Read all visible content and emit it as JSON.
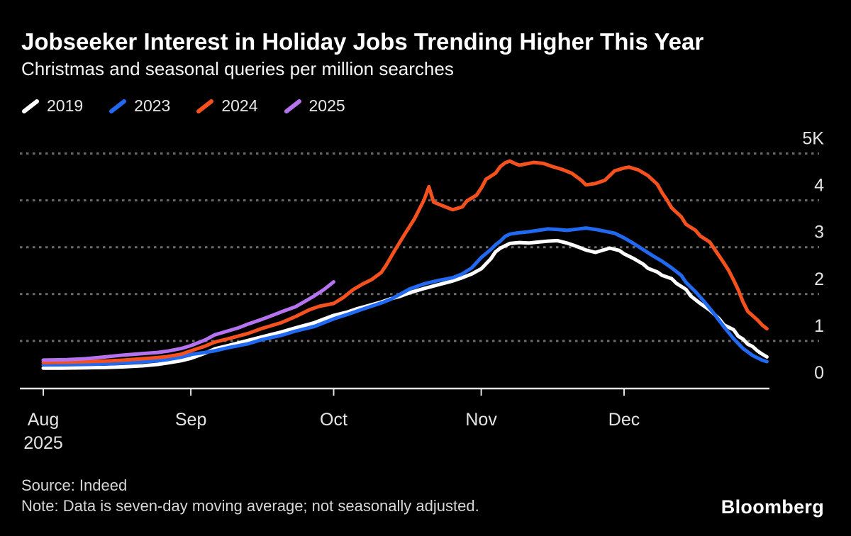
{
  "header": {
    "title": "Jobseeker Interest in Holiday Jobs Trending Higher This Year",
    "subtitle": "Christmas and seasonal queries per million searches"
  },
  "legend": {
    "position": "top-left",
    "items": [
      {
        "label": "2019",
        "color": "#ffffff"
      },
      {
        "label": "2023",
        "color": "#2269f2"
      },
      {
        "label": "2024",
        "color": "#f4511e"
      },
      {
        "label": "2025",
        "color": "#b673f0"
      }
    ]
  },
  "chart_data": {
    "type": "line",
    "title": "Jobseeker Interest in Holiday Jobs Trending Higher This Year",
    "subtitle": "Christmas and seasonal queries per million searches",
    "background": "#000000",
    "grid": "horizontal-dashed",
    "x_axis": {
      "unit": "days since Aug 1",
      "domain_days": [
        0,
        152
      ],
      "tick_labels": [
        "Aug",
        "Sep",
        "Oct",
        "Nov",
        "Dec"
      ],
      "tick_days": [
        0,
        31,
        61,
        92,
        122
      ],
      "start_year_label": "2025"
    },
    "y_axis": {
      "ylim": [
        0,
        5000
      ],
      "tick_values": [
        0,
        1000,
        2000,
        3000,
        4000,
        5000
      ],
      "tick_labels": [
        "0",
        "1",
        "2",
        "3",
        "4",
        "5K"
      ],
      "side": "right"
    },
    "series": [
      {
        "name": "2019",
        "color": "#ffffff",
        "points": [
          [
            0,
            420
          ],
          [
            4,
            420
          ],
          [
            9,
            428
          ],
          [
            13,
            432
          ],
          [
            17,
            448
          ],
          [
            21,
            470
          ],
          [
            24,
            500
          ],
          [
            26,
            530
          ],
          [
            29,
            580
          ],
          [
            31,
            630
          ],
          [
            34,
            740
          ],
          [
            36,
            830
          ],
          [
            39,
            905
          ],
          [
            43,
            1010
          ],
          [
            46,
            1090
          ],
          [
            50,
            1190
          ],
          [
            53,
            1280
          ],
          [
            57,
            1390
          ],
          [
            59,
            1470
          ],
          [
            61,
            1545
          ],
          [
            64,
            1620
          ],
          [
            66,
            1690
          ],
          [
            68,
            1745
          ],
          [
            71,
            1830
          ],
          [
            73,
            1900
          ],
          [
            75,
            1955
          ],
          [
            77,
            2030
          ],
          [
            80,
            2120
          ],
          [
            83,
            2200
          ],
          [
            86,
            2280
          ],
          [
            88,
            2350
          ],
          [
            90,
            2430
          ],
          [
            92,
            2540
          ],
          [
            94,
            2750
          ],
          [
            95,
            2900
          ],
          [
            96,
            2980
          ],
          [
            98,
            3080
          ],
          [
            100,
            3100
          ],
          [
            102,
            3090
          ],
          [
            104,
            3110
          ],
          [
            106,
            3130
          ],
          [
            108,
            3140
          ],
          [
            110,
            3090
          ],
          [
            112,
            3020
          ],
          [
            114,
            2940
          ],
          [
            116,
            2890
          ],
          [
            118,
            2950
          ],
          [
            119,
            2980
          ],
          [
            121,
            2930
          ],
          [
            122,
            2860
          ],
          [
            124,
            2760
          ],
          [
            126,
            2640
          ],
          [
            127,
            2550
          ],
          [
            129,
            2470
          ],
          [
            130,
            2400
          ],
          [
            132,
            2330
          ],
          [
            133,
            2230
          ],
          [
            135,
            2100
          ],
          [
            136,
            1960
          ],
          [
            138,
            1800
          ],
          [
            140,
            1660
          ],
          [
            142,
            1470
          ],
          [
            143,
            1340
          ],
          [
            145,
            1240
          ],
          [
            146,
            1100
          ],
          [
            147,
            1040
          ],
          [
            148,
            930
          ],
          [
            149,
            880
          ],
          [
            150,
            790
          ],
          [
            151,
            720
          ],
          [
            152,
            660
          ]
        ]
      },
      {
        "name": "2023",
        "color": "#2269f2",
        "points": [
          [
            0,
            490
          ],
          [
            4,
            492
          ],
          [
            9,
            500
          ],
          [
            13,
            512
          ],
          [
            17,
            528
          ],
          [
            21,
            555
          ],
          [
            24,
            578
          ],
          [
            26,
            600
          ],
          [
            29,
            655
          ],
          [
            31,
            712
          ],
          [
            34,
            755
          ],
          [
            36,
            790
          ],
          [
            39,
            860
          ],
          [
            43,
            940
          ],
          [
            46,
            1030
          ],
          [
            50,
            1120
          ],
          [
            53,
            1210
          ],
          [
            57,
            1310
          ],
          [
            59,
            1390
          ],
          [
            61,
            1470
          ],
          [
            64,
            1570
          ],
          [
            66,
            1640
          ],
          [
            68,
            1710
          ],
          [
            71,
            1810
          ],
          [
            73,
            1890
          ],
          [
            75,
            2000
          ],
          [
            77,
            2110
          ],
          [
            80,
            2220
          ],
          [
            83,
            2290
          ],
          [
            86,
            2350
          ],
          [
            88,
            2430
          ],
          [
            90,
            2560
          ],
          [
            92,
            2780
          ],
          [
            94,
            2950
          ],
          [
            95,
            3050
          ],
          [
            96,
            3130
          ],
          [
            97,
            3230
          ],
          [
            98,
            3280
          ],
          [
            100,
            3310
          ],
          [
            102,
            3330
          ],
          [
            104,
            3360
          ],
          [
            106,
            3390
          ],
          [
            108,
            3380
          ],
          [
            110,
            3360
          ],
          [
            112,
            3385
          ],
          [
            114,
            3410
          ],
          [
            116,
            3380
          ],
          [
            118,
            3340
          ],
          [
            120,
            3300
          ],
          [
            122,
            3200
          ],
          [
            124,
            3080
          ],
          [
            126,
            2950
          ],
          [
            128,
            2820
          ],
          [
            130,
            2700
          ],
          [
            132,
            2560
          ],
          [
            134,
            2400
          ],
          [
            135,
            2250
          ],
          [
            137,
            2050
          ],
          [
            139,
            1820
          ],
          [
            141,
            1570
          ],
          [
            143,
            1300
          ],
          [
            145,
            1050
          ],
          [
            147,
            840
          ],
          [
            149,
            690
          ],
          [
            151,
            590
          ],
          [
            152,
            560
          ]
        ]
      },
      {
        "name": "2024",
        "color": "#f4511e",
        "points": [
          [
            0,
            540
          ],
          [
            5,
            548
          ],
          [
            9,
            558
          ],
          [
            13,
            572
          ],
          [
            17,
            592
          ],
          [
            21,
            622
          ],
          [
            24,
            645
          ],
          [
            26,
            665
          ],
          [
            29,
            718
          ],
          [
            31,
            790
          ],
          [
            34,
            890
          ],
          [
            36,
            975
          ],
          [
            39,
            1050
          ],
          [
            43,
            1160
          ],
          [
            46,
            1270
          ],
          [
            50,
            1390
          ],
          [
            53,
            1520
          ],
          [
            56,
            1670
          ],
          [
            58,
            1740
          ],
          [
            61,
            1800
          ],
          [
            63,
            1925
          ],
          [
            65,
            2090
          ],
          [
            67,
            2210
          ],
          [
            69,
            2310
          ],
          [
            71,
            2460
          ],
          [
            72,
            2610
          ],
          [
            74,
            2960
          ],
          [
            76,
            3290
          ],
          [
            78,
            3610
          ],
          [
            80,
            4010
          ],
          [
            81,
            4290
          ],
          [
            82,
            3960
          ],
          [
            84,
            3880
          ],
          [
            86,
            3800
          ],
          [
            88,
            3860
          ],
          [
            89,
            3990
          ],
          [
            91,
            4110
          ],
          [
            92,
            4260
          ],
          [
            93,
            4450
          ],
          [
            95,
            4580
          ],
          [
            96,
            4720
          ],
          [
            97,
            4800
          ],
          [
            98,
            4840
          ],
          [
            99,
            4790
          ],
          [
            100,
            4750
          ],
          [
            102,
            4790
          ],
          [
            103,
            4810
          ],
          [
            105,
            4790
          ],
          [
            107,
            4720
          ],
          [
            109,
            4660
          ],
          [
            111,
            4580
          ],
          [
            113,
            4430
          ],
          [
            114,
            4330
          ],
          [
            116,
            4360
          ],
          [
            118,
            4430
          ],
          [
            119,
            4530
          ],
          [
            120,
            4630
          ],
          [
            122,
            4690
          ],
          [
            123,
            4710
          ],
          [
            125,
            4650
          ],
          [
            127,
            4530
          ],
          [
            129,
            4340
          ],
          [
            130,
            4160
          ],
          [
            131,
            4010
          ],
          [
            132,
            3840
          ],
          [
            134,
            3650
          ],
          [
            135,
            3490
          ],
          [
            137,
            3360
          ],
          [
            138,
            3240
          ],
          [
            140,
            3110
          ],
          [
            141,
            2960
          ],
          [
            143,
            2660
          ],
          [
            144,
            2500
          ],
          [
            145,
            2300
          ],
          [
            146,
            2090
          ],
          [
            147,
            1830
          ],
          [
            148,
            1630
          ],
          [
            150,
            1450
          ],
          [
            151,
            1340
          ],
          [
            152,
            1260
          ]
        ]
      },
      {
        "name": "2025",
        "color": "#b673f0",
        "points": [
          [
            0,
            592
          ],
          [
            5,
            602
          ],
          [
            9,
            622
          ],
          [
            13,
            660
          ],
          [
            17,
            700
          ],
          [
            21,
            732
          ],
          [
            24,
            755
          ],
          [
            26,
            780
          ],
          [
            29,
            840
          ],
          [
            31,
            900
          ],
          [
            34,
            1020
          ],
          [
            36,
            1130
          ],
          [
            39,
            1220
          ],
          [
            41,
            1280
          ],
          [
            43,
            1360
          ],
          [
            46,
            1465
          ],
          [
            48,
            1540
          ],
          [
            50,
            1620
          ],
          [
            53,
            1730
          ],
          [
            55,
            1845
          ],
          [
            57,
            1965
          ],
          [
            59,
            2100
          ],
          [
            61,
            2260
          ]
        ]
      }
    ]
  },
  "footer": {
    "source": "Source: Indeed",
    "note": "Note: Data is seven-day moving average; not seasonally adjusted.",
    "brand": "Bloomberg"
  }
}
